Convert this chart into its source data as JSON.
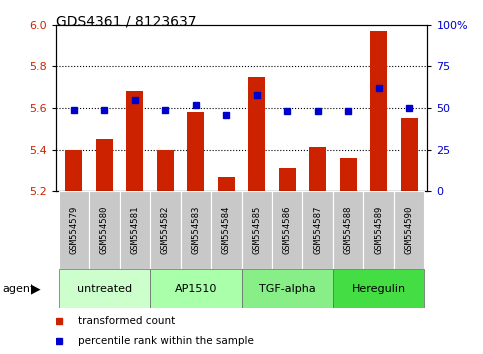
{
  "title": "GDS4361 / 8123637",
  "samples": [
    "GSM554579",
    "GSM554580",
    "GSM554581",
    "GSM554582",
    "GSM554583",
    "GSM554584",
    "GSM554585",
    "GSM554586",
    "GSM554587",
    "GSM554588",
    "GSM554589",
    "GSM554590"
  ],
  "red_values": [
    5.4,
    5.45,
    5.68,
    5.4,
    5.58,
    5.27,
    5.75,
    5.31,
    5.41,
    5.36,
    5.97,
    5.55
  ],
  "blue_values": [
    49,
    49,
    55,
    49,
    52,
    46,
    58,
    48,
    48,
    48,
    62,
    50
  ],
  "ylim_left": [
    5.2,
    6.0
  ],
  "ylim_right": [
    0,
    100
  ],
  "yticks_left": [
    5.2,
    5.4,
    5.6,
    5.8,
    6.0
  ],
  "yticks_right": [
    0,
    25,
    50,
    75,
    100
  ],
  "ytick_labels_right": [
    "0",
    "25",
    "50",
    "75",
    "100%"
  ],
  "hlines": [
    5.4,
    5.6,
    5.8
  ],
  "agents": [
    {
      "label": "untreated",
      "start": 0,
      "end": 3,
      "color": "#ccffcc"
    },
    {
      "label": "AP1510",
      "start": 3,
      "end": 6,
      "color": "#aaffaa"
    },
    {
      "label": "TGF-alpha",
      "start": 6,
      "end": 9,
      "color": "#88ee88"
    },
    {
      "label": "Heregulin",
      "start": 9,
      "end": 12,
      "color": "#44dd44"
    }
  ],
  "agent_label": "agent",
  "red_color": "#cc2200",
  "blue_color": "#0000cc",
  "bar_width": 0.55,
  "legend_red": "transformed count",
  "legend_blue": "percentile rank within the sample",
  "background_color": "#ffffff",
  "plot_bg": "#ffffff",
  "tick_label_color_left": "#cc2200",
  "tick_label_color_right": "#0000cc",
  "gray_box_color": "#c8c8c8",
  "title_fontsize": 10,
  "axis_fontsize": 8,
  "sample_fontsize": 6.5,
  "agent_fontsize": 8,
  "legend_fontsize": 7.5
}
